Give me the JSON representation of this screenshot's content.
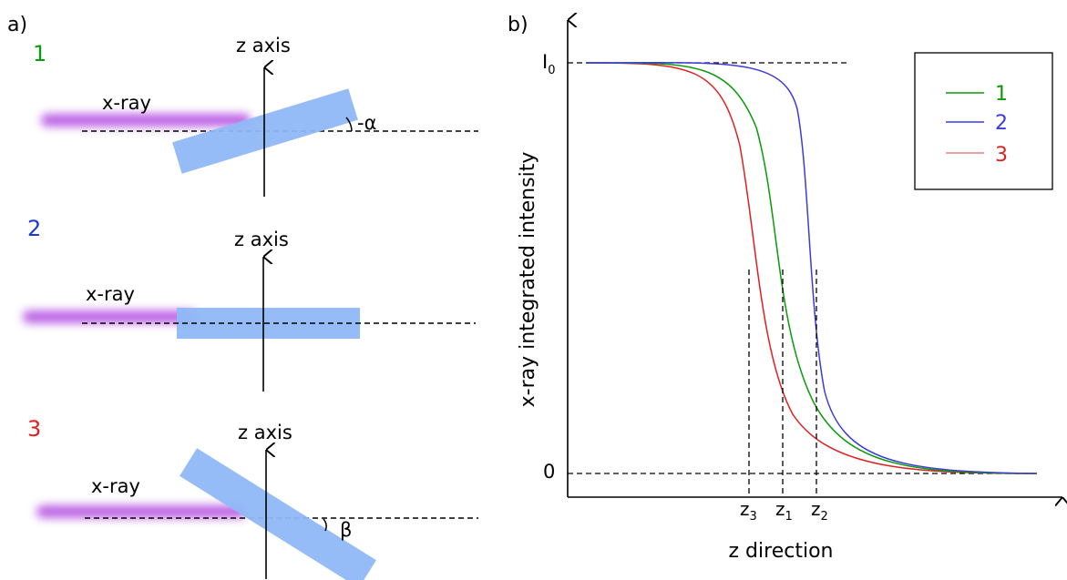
{
  "panel_a": {
    "label": "a)",
    "beam_label": "x-ray",
    "axis_label": "z axis",
    "cases": [
      {
        "number": "1",
        "color": "#0a9a0a",
        "angle_label": "-α",
        "tilt_deg": -17
      },
      {
        "number": "2",
        "color": "#1f35d6",
        "angle_label": "",
        "tilt_deg": 0
      },
      {
        "number": "3",
        "color": "#e02020",
        "angle_label": "β",
        "tilt_deg": 32
      }
    ],
    "sample_color": "#8fb8f5",
    "beam_color": "#b44fe0"
  },
  "panel_b": {
    "label": "b)",
    "ylabel": "x-ray integrated intensity",
    "xlabel": "z direction",
    "y_top_label": "I",
    "y_top_sub": "0",
    "y_zero_label": "0",
    "legend": [
      {
        "label": "1",
        "color": "#0a9a0a"
      },
      {
        "label": "2",
        "color": "#3b3bdb"
      },
      {
        "label": "3",
        "color": "#e02020"
      }
    ],
    "z_markers": [
      {
        "base": "z",
        "sub": "3"
      },
      {
        "base": "z",
        "sub": "1"
      },
      {
        "base": "z",
        "sub": "2"
      }
    ]
  }
}
